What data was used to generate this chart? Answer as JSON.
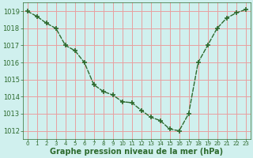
{
  "x": [
    0,
    1,
    2,
    3,
    4,
    5,
    6,
    7,
    8,
    9,
    10,
    11,
    12,
    13,
    14,
    15,
    16,
    17,
    18,
    19,
    20,
    21,
    22,
    23
  ],
  "y": [
    1019.0,
    1018.7,
    1018.3,
    1018.0,
    1017.0,
    1016.7,
    1016.0,
    1014.7,
    1014.3,
    1014.1,
    1013.7,
    1013.65,
    1013.2,
    1012.8,
    1012.6,
    1012.1,
    1012.0,
    1013.0,
    1016.0,
    1017.0,
    1018.0,
    1018.6,
    1018.9,
    1019.1
  ],
  "line_color": "#2d6a2d",
  "marker": "+",
  "marker_size": 5,
  "marker_lw": 1.2,
  "bg_color": "#d0f0ee",
  "grid_color": "#e8a0a0",
  "xlabel": "Graphe pression niveau de la mer (hPa)",
  "xlabel_color": "#2d6a2d",
  "xlabel_fontsize": 7,
  "xtick_labels": [
    "0",
    "1",
    "2",
    "3",
    "4",
    "5",
    "6",
    "7",
    "8",
    "9",
    "10",
    "11",
    "12",
    "13",
    "14",
    "15",
    "16",
    "17",
    "18",
    "19",
    "20",
    "21",
    "22",
    "23"
  ],
  "ylim": [
    1011.5,
    1019.5
  ],
  "yticks": [
    1012,
    1013,
    1014,
    1015,
    1016,
    1017,
    1018,
    1019
  ],
  "ytick_fontsize": 6,
  "xtick_fontsize": 5,
  "tick_color": "#2d6a2d",
  "line_width": 1.0,
  "spine_color": "#2d6a2d"
}
